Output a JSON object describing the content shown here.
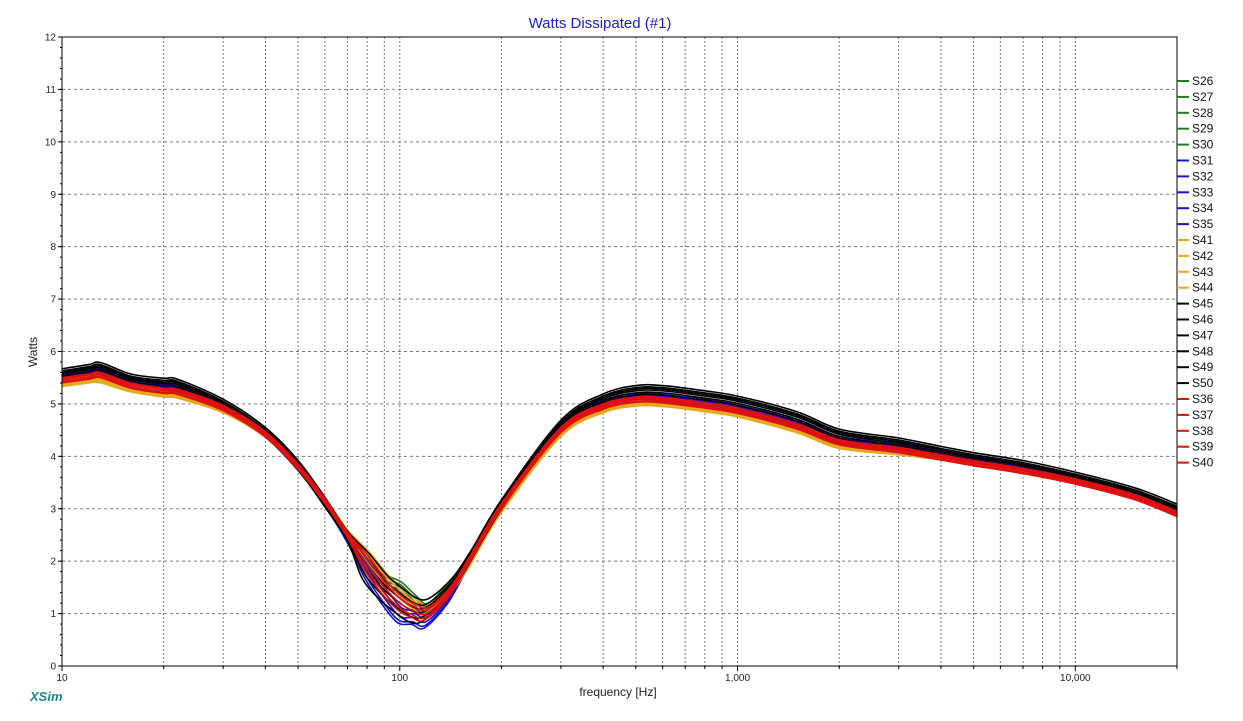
{
  "app": {
    "brand": "XSim"
  },
  "colors": {
    "title": "#1b1bcc",
    "brand": "#1a8a8a",
    "grid": "#7a7a7a",
    "green": "#1e7b1e",
    "blue": "#1515cf",
    "orange": "#e6a817",
    "black": "#000000",
    "red": "#e01010"
  },
  "chart_data": {
    "type": "line",
    "title": "Watts Dissipated (#1)",
    "xlabel": "frequency [Hz]",
    "ylabel": "Watts",
    "xscale": "log",
    "xlim": [
      10,
      20000
    ],
    "ylim": [
      0,
      12
    ],
    "grid": true,
    "legend_position": "right",
    "y_ticks": [
      "0",
      "1",
      "2",
      "3",
      "4",
      "5",
      "6",
      "7",
      "8",
      "9",
      "10",
      "11",
      "12"
    ],
    "x_ticks": [
      {
        "value": 10,
        "label": "10"
      },
      {
        "value": 100,
        "label": "100"
      },
      {
        "value": 1000,
        "label": "1,000"
      },
      {
        "value": 10000,
        "label": "10,000"
      }
    ],
    "groups": [
      {
        "color_key": "green",
        "names": [
          "S26",
          "S27",
          "S28",
          "S29",
          "S30"
        ],
        "curve": [
          [
            10,
            5.55
          ],
          [
            12,
            5.62
          ],
          [
            13,
            5.64
          ],
          [
            16,
            5.45
          ],
          [
            20,
            5.35
          ],
          [
            22,
            5.32
          ],
          [
            30,
            4.95
          ],
          [
            40,
            4.42
          ],
          [
            50,
            3.8
          ],
          [
            60,
            3.15
          ],
          [
            70,
            2.5
          ],
          [
            80,
            2.0
          ],
          [
            90,
            1.65
          ],
          [
            100,
            1.5
          ],
          [
            110,
            1.25
          ],
          [
            120,
            1.1
          ],
          [
            140,
            1.55
          ],
          [
            160,
            2.0
          ],
          [
            200,
            3.1
          ],
          [
            300,
            4.55
          ],
          [
            400,
            5.0
          ],
          [
            500,
            5.13
          ],
          [
            600,
            5.1
          ],
          [
            800,
            5.0
          ],
          [
            1000,
            4.9
          ],
          [
            1500,
            4.6
          ],
          [
            2000,
            4.3
          ],
          [
            3000,
            4.15
          ],
          [
            4000,
            4.0
          ],
          [
            5000,
            3.9
          ],
          [
            7000,
            3.75
          ],
          [
            10000,
            3.55
          ],
          [
            15000,
            3.25
          ],
          [
            20000,
            2.95
          ]
        ],
        "offsets": [
          0.0,
          0.02,
          -0.02,
          0.04,
          -0.04
        ]
      },
      {
        "color_key": "blue",
        "names": [
          "S31",
          "S32",
          "S33",
          "S34",
          "S35"
        ],
        "curve": [
          [
            10,
            5.55
          ],
          [
            12,
            5.62
          ],
          [
            13,
            5.62
          ],
          [
            16,
            5.45
          ],
          [
            20,
            5.33
          ],
          [
            22,
            5.3
          ],
          [
            30,
            4.95
          ],
          [
            40,
            4.42
          ],
          [
            50,
            3.78
          ],
          [
            60,
            3.1
          ],
          [
            70,
            2.4
          ],
          [
            80,
            1.8
          ],
          [
            90,
            1.3
          ],
          [
            100,
            0.95
          ],
          [
            110,
            0.92
          ],
          [
            120,
            0.85
          ],
          [
            140,
            1.3
          ],
          [
            160,
            1.95
          ],
          [
            200,
            3.05
          ],
          [
            300,
            4.55
          ],
          [
            400,
            5.0
          ],
          [
            500,
            5.15
          ],
          [
            600,
            5.12
          ],
          [
            800,
            5.02
          ],
          [
            1000,
            4.92
          ],
          [
            1500,
            4.62
          ],
          [
            2000,
            4.32
          ],
          [
            3000,
            4.17
          ],
          [
            4000,
            4.02
          ],
          [
            5000,
            3.92
          ],
          [
            7000,
            3.77
          ],
          [
            10000,
            3.57
          ],
          [
            15000,
            3.27
          ],
          [
            20000,
            2.95
          ]
        ],
        "offsets": [
          0.0,
          0.03,
          -0.03,
          0.06,
          -0.05
        ]
      },
      {
        "color_key": "orange",
        "names": [
          "S41",
          "S42",
          "S43",
          "S44"
        ],
        "curve": [
          [
            10,
            5.35
          ],
          [
            12,
            5.42
          ],
          [
            13,
            5.42
          ],
          [
            16,
            5.25
          ],
          [
            20,
            5.15
          ],
          [
            22,
            5.13
          ],
          [
            30,
            4.85
          ],
          [
            40,
            4.38
          ],
          [
            50,
            3.78
          ],
          [
            60,
            3.15
          ],
          [
            70,
            2.55
          ],
          [
            80,
            2.05
          ],
          [
            90,
            1.65
          ],
          [
            100,
            1.35
          ],
          [
            110,
            1.15
          ],
          [
            120,
            1.05
          ],
          [
            140,
            1.4
          ],
          [
            160,
            1.9
          ],
          [
            200,
            2.95
          ],
          [
            300,
            4.4
          ],
          [
            400,
            4.85
          ],
          [
            500,
            4.98
          ],
          [
            600,
            4.97
          ],
          [
            800,
            4.87
          ],
          [
            1000,
            4.77
          ],
          [
            1500,
            4.47
          ],
          [
            2000,
            4.17
          ],
          [
            3000,
            4.05
          ],
          [
            4000,
            3.95
          ],
          [
            5000,
            3.85
          ],
          [
            7000,
            3.7
          ],
          [
            10000,
            3.5
          ],
          [
            15000,
            3.2
          ],
          [
            20000,
            2.9
          ]
        ],
        "offsets": [
          0.0,
          0.03,
          -0.02,
          0.05
        ]
      },
      {
        "color_key": "black",
        "names": [
          "S45",
          "S46",
          "S47",
          "S48",
          "S49",
          "S50"
        ],
        "curve": [
          [
            10,
            5.6
          ],
          [
            12,
            5.68
          ],
          [
            13,
            5.72
          ],
          [
            16,
            5.5
          ],
          [
            20,
            5.42
          ],
          [
            22,
            5.4
          ],
          [
            30,
            5.02
          ],
          [
            40,
            4.48
          ],
          [
            50,
            3.85
          ],
          [
            60,
            3.15
          ],
          [
            70,
            2.5
          ],
          [
            80,
            1.95
          ],
          [
            90,
            1.55
          ],
          [
            100,
            1.3
          ],
          [
            110,
            1.12
          ],
          [
            120,
            1.12
          ],
          [
            140,
            1.5
          ],
          [
            160,
            2.05
          ],
          [
            200,
            3.1
          ],
          [
            300,
            4.62
          ],
          [
            400,
            5.12
          ],
          [
            500,
            5.28
          ],
          [
            600,
            5.28
          ],
          [
            800,
            5.18
          ],
          [
            1000,
            5.08
          ],
          [
            1500,
            4.78
          ],
          [
            2000,
            4.45
          ],
          [
            3000,
            4.28
          ],
          [
            4000,
            4.12
          ],
          [
            5000,
            4.0
          ],
          [
            7000,
            3.85
          ],
          [
            10000,
            3.63
          ],
          [
            15000,
            3.33
          ],
          [
            20000,
            3.02
          ]
        ],
        "offsets": [
          0.0,
          -0.03,
          0.03,
          -0.07,
          0.07,
          -0.11
        ]
      },
      {
        "color_key": "red",
        "names": [
          "S36",
          "S37",
          "S38",
          "S39",
          "S40"
        ],
        "curve": [
          [
            10,
            5.45
          ],
          [
            12,
            5.52
          ],
          [
            13,
            5.55
          ],
          [
            16,
            5.35
          ],
          [
            20,
            5.25
          ],
          [
            22,
            5.23
          ],
          [
            30,
            4.92
          ],
          [
            40,
            4.42
          ],
          [
            50,
            3.8
          ],
          [
            60,
            3.15
          ],
          [
            70,
            2.5
          ],
          [
            80,
            1.95
          ],
          [
            90,
            1.5
          ],
          [
            100,
            1.2
          ],
          [
            110,
            1.05
          ],
          [
            120,
            1.0
          ],
          [
            140,
            1.4
          ],
          [
            160,
            2.0
          ],
          [
            200,
            3.05
          ],
          [
            300,
            4.5
          ],
          [
            400,
            4.95
          ],
          [
            500,
            5.08
          ],
          [
            600,
            5.07
          ],
          [
            800,
            4.97
          ],
          [
            1000,
            4.87
          ],
          [
            1500,
            4.57
          ],
          [
            2000,
            4.27
          ],
          [
            3000,
            4.12
          ],
          [
            4000,
            3.98
          ],
          [
            5000,
            3.87
          ],
          [
            7000,
            3.72
          ],
          [
            10000,
            3.52
          ],
          [
            15000,
            3.22
          ],
          [
            20000,
            2.9
          ]
        ],
        "offsets": [
          0.0,
          0.03,
          -0.03,
          0.05,
          -0.05
        ]
      }
    ],
    "legend": [
      {
        "name": "S26",
        "color_key": "green"
      },
      {
        "name": "S27",
        "color_key": "green"
      },
      {
        "name": "S28",
        "color_key": "green"
      },
      {
        "name": "S29",
        "color_key": "green"
      },
      {
        "name": "S30",
        "color_key": "green"
      },
      {
        "name": "S31",
        "color_key": "blue"
      },
      {
        "name": "S32",
        "color_key": "blue"
      },
      {
        "name": "S33",
        "color_key": "blue"
      },
      {
        "name": "S34",
        "color_key": "blue"
      },
      {
        "name": "S35",
        "color_key": "blue"
      },
      {
        "name": "S41",
        "color_key": "orange"
      },
      {
        "name": "S42",
        "color_key": "orange"
      },
      {
        "name": "S43",
        "color_key": "orange"
      },
      {
        "name": "S44",
        "color_key": "orange"
      },
      {
        "name": "S45",
        "color_key": "black"
      },
      {
        "name": "S46",
        "color_key": "black"
      },
      {
        "name": "S47",
        "color_key": "black"
      },
      {
        "name": "S48",
        "color_key": "black"
      },
      {
        "name": "S49",
        "color_key": "black"
      },
      {
        "name": "S50",
        "color_key": "black"
      },
      {
        "name": "S36",
        "color_key": "red"
      },
      {
        "name": "S37",
        "color_key": "red"
      },
      {
        "name": "S38",
        "color_key": "red"
      },
      {
        "name": "S39",
        "color_key": "red"
      },
      {
        "name": "S40",
        "color_key": "red"
      }
    ]
  }
}
